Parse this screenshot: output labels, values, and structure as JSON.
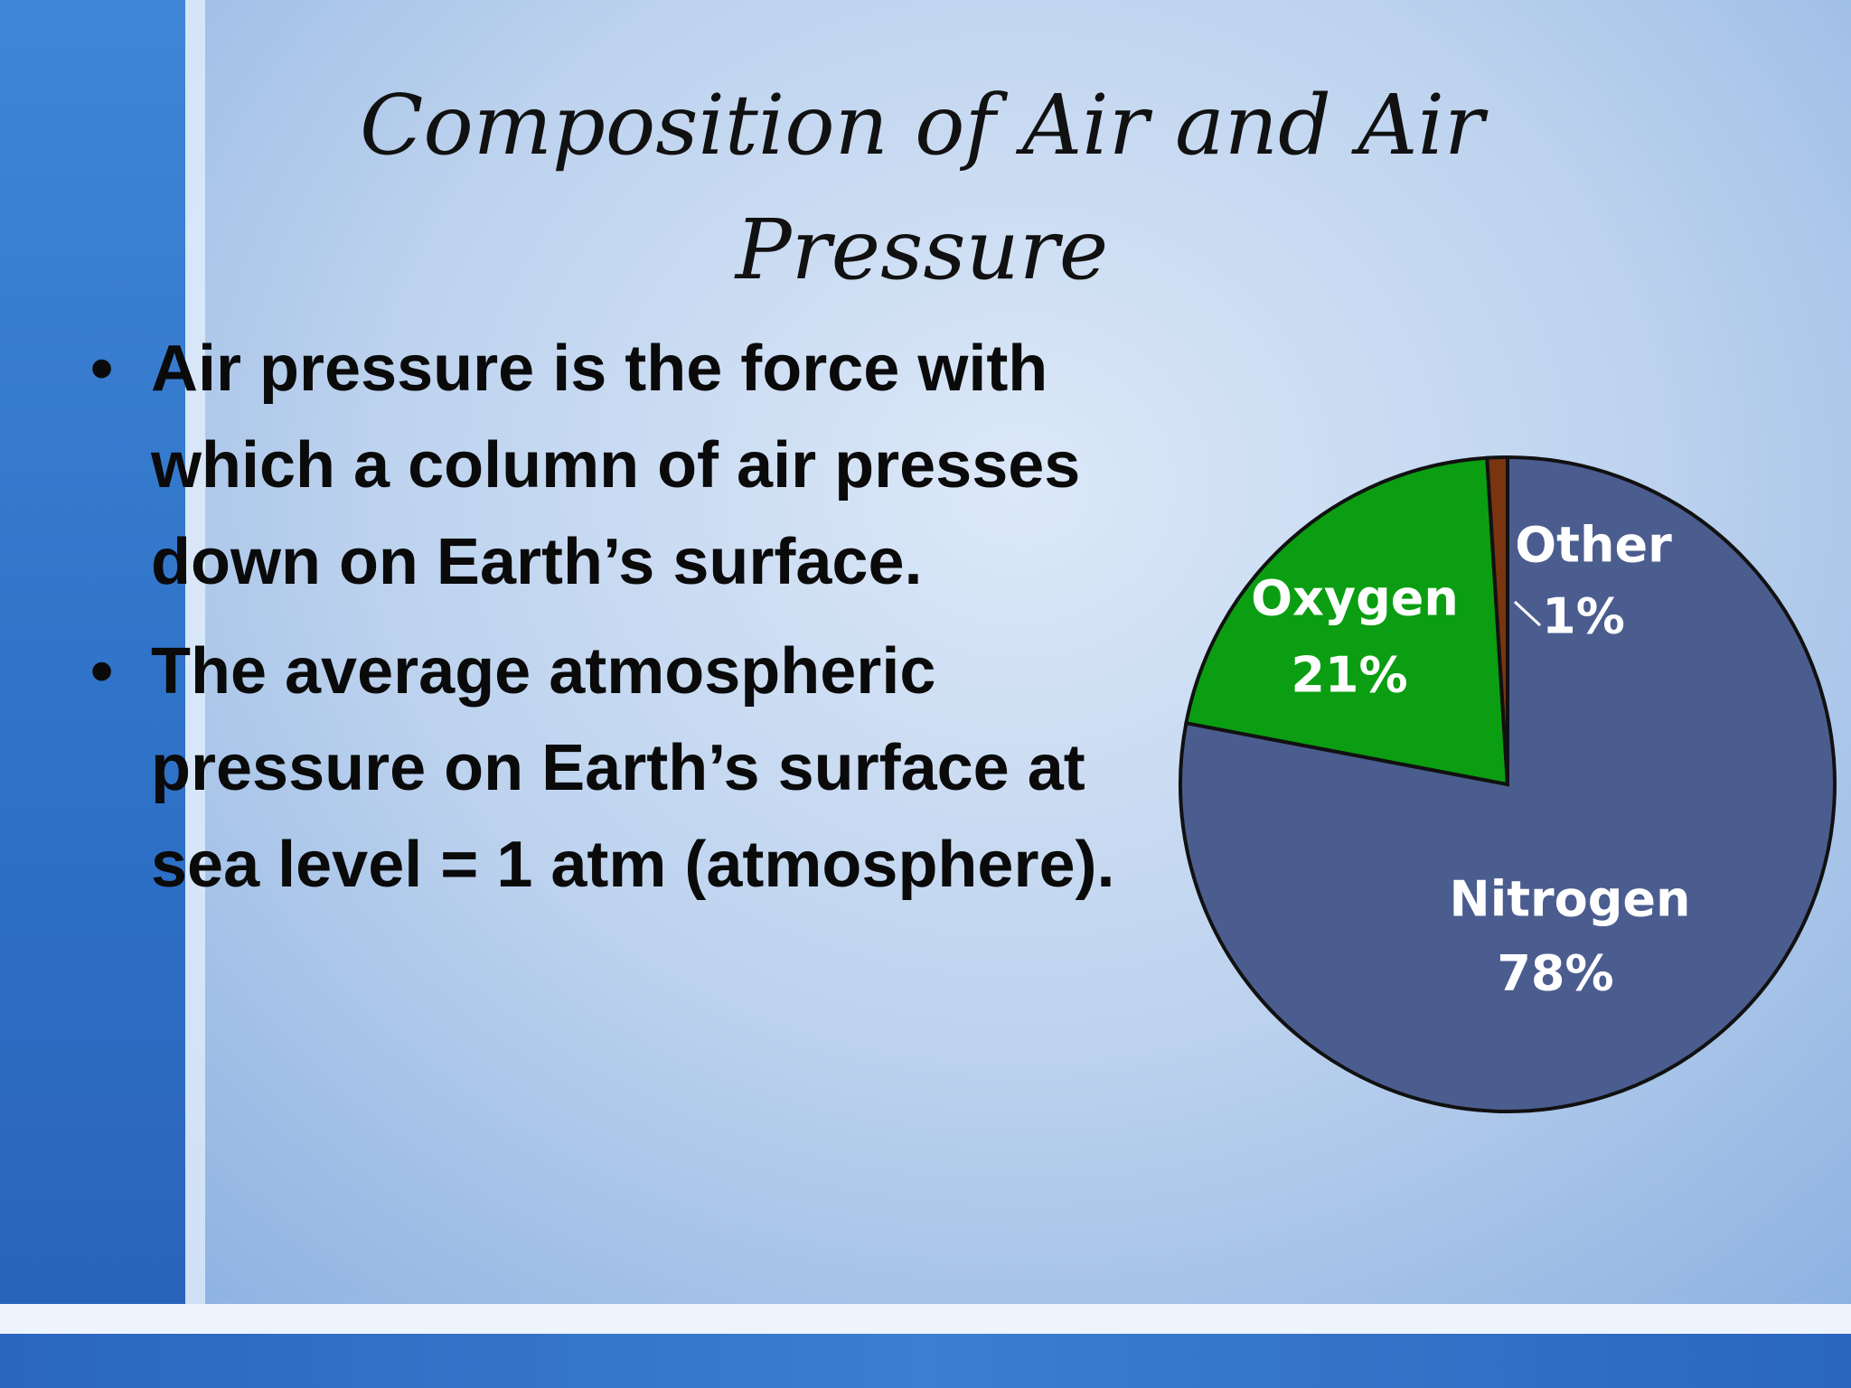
{
  "slide": {
    "title": "Composition of Air and Air Pressure",
    "bullets": [
      "Air pressure is the force with which a column of air presses down on Earth’s surface.",
      "The average atmospheric pressure on Earth’s surface at sea level = 1 atm (atmosphere)."
    ]
  },
  "chart_data": {
    "type": "pie",
    "categories": [
      "Nitrogen",
      "Oxygen",
      "Other"
    ],
    "values": [
      78,
      21,
      1
    ],
    "value_labels": [
      "78%",
      "21%",
      "1%"
    ],
    "colors": [
      "#4b5d8f",
      "#0b9e12",
      "#7a3410"
    ]
  }
}
